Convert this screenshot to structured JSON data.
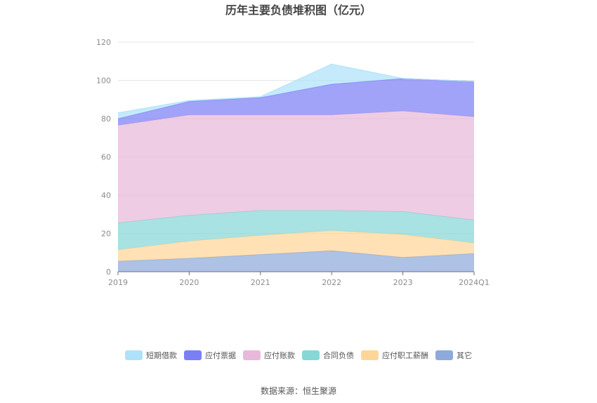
{
  "chart_data": {
    "type": "area",
    "stacked": true,
    "title": "历年主要负债堆积图（亿元）",
    "categories": [
      "2019",
      "2020",
      "2021",
      "2022",
      "2023",
      "2024Q1"
    ],
    "ylim": [
      0,
      120
    ],
    "yticks": [
      "0",
      "20",
      "40",
      "60",
      "80",
      "100",
      "120"
    ],
    "grid": true,
    "legend_position": "bottom",
    "series": [
      {
        "name": "其它",
        "color": "#8eaadb",
        "values": [
          5.5,
          7.0,
          9.0,
          11.0,
          7.5,
          9.5
        ]
      },
      {
        "name": "应付职工薪酬",
        "color": "#ffd699",
        "values": [
          6.0,
          9.0,
          10.0,
          10.5,
          12.0,
          5.5
        ]
      },
      {
        "name": "合同负债",
        "color": "#87d7d7",
        "values": [
          14.0,
          13.5,
          13.0,
          10.5,
          12.0,
          12.0
        ]
      },
      {
        "name": "应付账款",
        "color": "#e8b9da",
        "values": [
          51.0,
          52.5,
          50.0,
          50.0,
          52.5,
          54.0
        ]
      },
      {
        "name": "应付票据",
        "color": "#7b7ff5",
        "values": [
          3.5,
          7.0,
          9.0,
          16.0,
          17.0,
          18.5
        ]
      },
      {
        "name": "短期借款",
        "color": "#aee2fa",
        "values": [
          3.0,
          0.5,
          0.5,
          10.5,
          0.0,
          0.0
        ]
      }
    ]
  },
  "legend_order": [
    "短期借款",
    "应付票据",
    "应付账款",
    "合同负债",
    "应付职工薪酬",
    "其它"
  ],
  "source": "数据来源：恒生聚源"
}
